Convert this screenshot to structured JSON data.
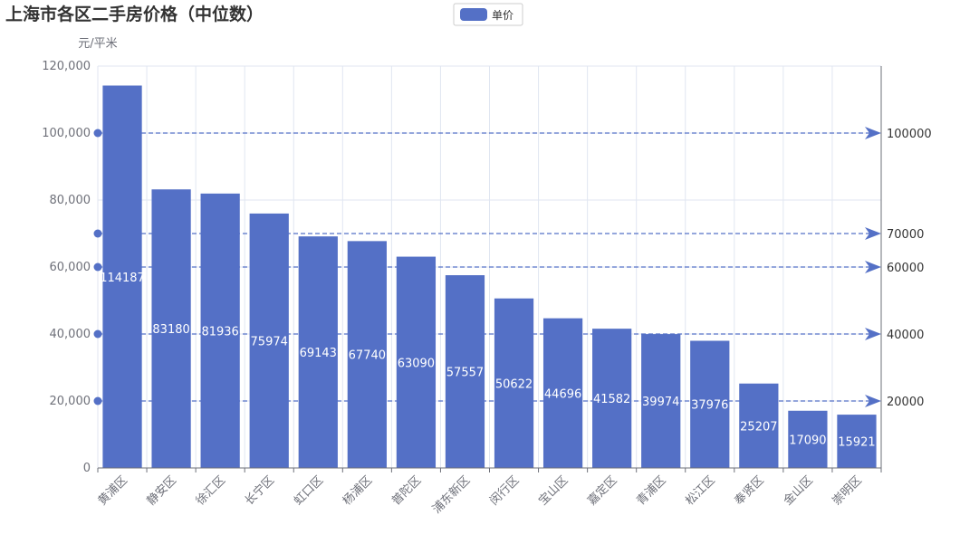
{
  "chart_data": {
    "type": "bar",
    "title": "上海市各区二手房价格（中位数）",
    "ylabel": "元/平米",
    "ylim": [
      0,
      120000
    ],
    "yticks": [
      0,
      20000,
      40000,
      60000,
      80000,
      100000,
      120000
    ],
    "ytick_labels": [
      "0",
      "20,000",
      "40,000",
      "60,000",
      "80,000",
      "100,000",
      "120,000"
    ],
    "categories": [
      "黄浦区",
      "静安区",
      "徐汇区",
      "长宁区",
      "虹口区",
      "杨浦区",
      "普陀区",
      "浦东新区",
      "闵行区",
      "宝山区",
      "嘉定区",
      "青浦区",
      "松江区",
      "奉贤区",
      "金山区",
      "崇明区"
    ],
    "series": [
      {
        "name": "单价",
        "values": [
          114187,
          83180,
          81936,
          75974,
          69143,
          67740,
          63090,
          57557,
          50622,
          44696,
          41582,
          39974,
          37976,
          25207,
          17090,
          15921
        ]
      }
    ],
    "reference_lines": [
      {
        "value": 100000,
        "label": "100000"
      },
      {
        "value": 70000,
        "label": "70000"
      },
      {
        "value": 60000,
        "label": "60000"
      },
      {
        "value": 40000,
        "label": "40000"
      },
      {
        "value": 20000,
        "label": "20000"
      }
    ],
    "legend_position": "top-center",
    "grid": true,
    "colors": {
      "bar": "#5470c6",
      "axis": "#6e7079",
      "grid": "#e0e6f1",
      "title": "#333333",
      "bar_label": "#ffffff"
    }
  }
}
